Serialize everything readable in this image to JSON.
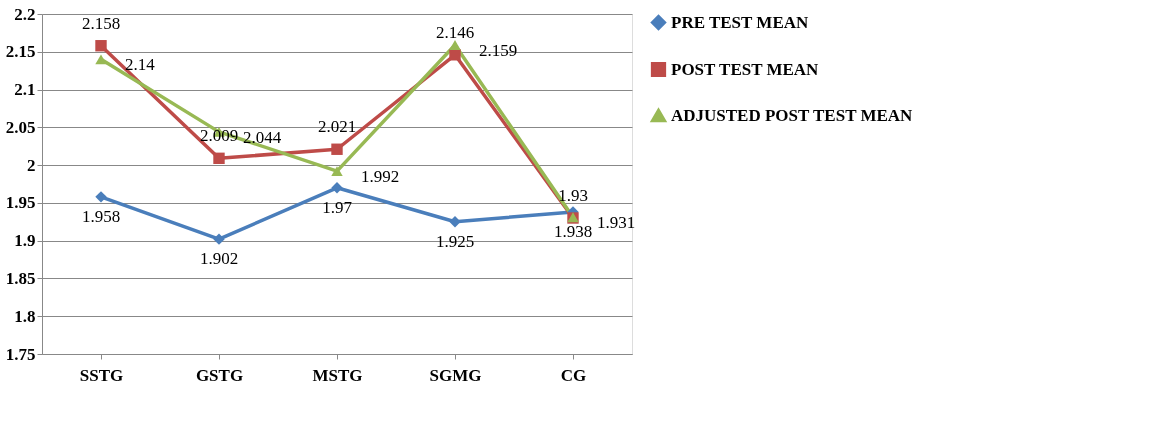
{
  "chart_data": {
    "type": "line",
    "categories": [
      "SSTG",
      "GSTG",
      "MSTG",
      "SGMG",
      "CG"
    ],
    "series": [
      {
        "name": "PRE TEST MEAN",
        "color": "#4a7ebb",
        "marker": "diamond",
        "values": [
          1.958,
          1.902,
          1.97,
          1.925,
          1.938
        ]
      },
      {
        "name": "POST TEST MEAN",
        "color": "#be4b48",
        "marker": "square",
        "values": [
          2.158,
          2.009,
          2.021,
          2.146,
          1.93
        ]
      },
      {
        "name": "ADJUSTED POST TEST MEAN",
        "color": "#98b954",
        "marker": "triangle",
        "values": [
          2.14,
          2.044,
          1.992,
          2.159,
          1.931
        ]
      }
    ],
    "ylim": [
      1.75,
      2.2
    ],
    "yticks": [
      1.75,
      1.8,
      1.85,
      1.9,
      1.95,
      2,
      2.05,
      2.1,
      2.15,
      2.2
    ],
    "grid": "y",
    "legend": "right",
    "data_labels": true,
    "line_style": "solid"
  }
}
